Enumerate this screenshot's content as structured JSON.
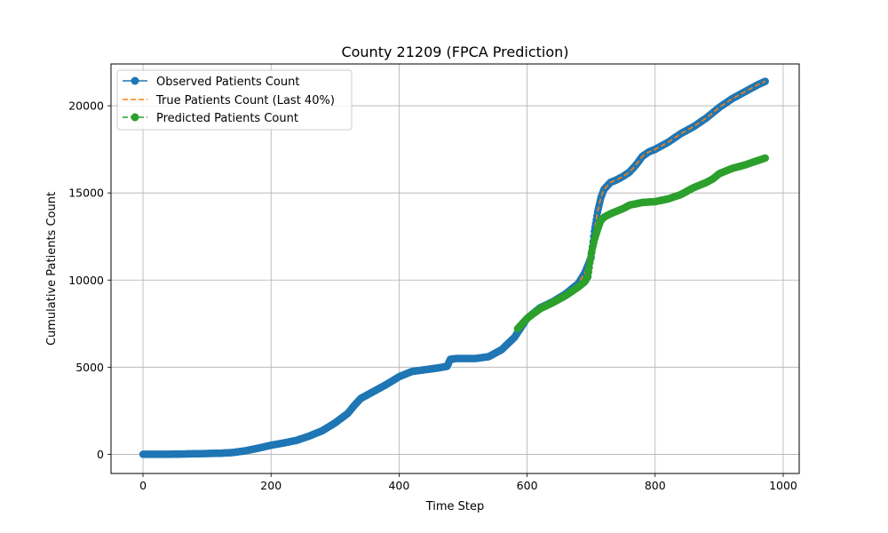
{
  "chart_data": {
    "type": "line",
    "title": "County 21209 (FPCA Prediction)",
    "xlabel": "Time Step",
    "ylabel": "Cumulative Patients Count",
    "xlim": [
      -50,
      1025
    ],
    "ylim": [
      -1100,
      22400
    ],
    "x_ticks": [
      0,
      200,
      400,
      600,
      800,
      1000
    ],
    "y_ticks": [
      0,
      5000,
      10000,
      15000,
      20000
    ],
    "grid": true,
    "legend_position": "top-left",
    "series": [
      {
        "name": "Observed Patients Count",
        "color": "#1f77b4",
        "style": "solid-marker",
        "x": [
          0,
          40,
          80,
          120,
          140,
          160,
          180,
          200,
          220,
          240,
          260,
          280,
          300,
          320,
          330,
          340,
          360,
          380,
          400,
          420,
          440,
          460,
          475,
          480,
          490,
          500,
          520,
          540,
          560,
          580,
          600,
          620,
          640,
          660,
          680,
          690,
          700,
          705,
          710,
          715,
          720,
          730,
          740,
          750,
          760,
          770,
          780,
          790,
          800,
          820,
          840,
          860,
          880,
          900,
          920,
          940,
          960,
          972
        ],
        "y": [
          0,
          0,
          30,
          60,
          100,
          200,
          350,
          520,
          650,
          800,
          1050,
          1350,
          1800,
          2350,
          2800,
          3200,
          3600,
          4000,
          4450,
          4750,
          4850,
          4950,
          5050,
          5450,
          5500,
          5500,
          5500,
          5600,
          6000,
          6700,
          7800,
          8400,
          8750,
          9200,
          9800,
          10400,
          11300,
          12800,
          13900,
          14700,
          15200,
          15600,
          15750,
          15950,
          16200,
          16600,
          17100,
          17350,
          17500,
          17900,
          18400,
          18800,
          19300,
          19900,
          20400,
          20800,
          21200,
          21400
        ]
      },
      {
        "name": "True Patients Count (Last 40%)",
        "color": "#ff7f0e",
        "style": "dashed",
        "x": [
          585,
          600,
          620,
          640,
          660,
          680,
          690,
          700,
          705,
          710,
          715,
          720,
          730,
          740,
          750,
          760,
          770,
          780,
          790,
          800,
          820,
          840,
          860,
          880,
          900,
          920,
          940,
          960,
          972
        ],
        "y": [
          7200,
          7800,
          8400,
          8750,
          9200,
          9800,
          10400,
          11300,
          12800,
          13900,
          14700,
          15200,
          15600,
          15750,
          15950,
          16200,
          16600,
          17100,
          17350,
          17500,
          17900,
          18400,
          18800,
          19300,
          19900,
          20400,
          20800,
          21200,
          21400
        ]
      },
      {
        "name": "Predicted Patients Count",
        "color": "#2ca02c",
        "style": "dashed-marker",
        "x": [
          585,
          600,
          620,
          640,
          660,
          680,
          690,
          695,
          700,
          705,
          710,
          715,
          720,
          730,
          740,
          750,
          760,
          780,
          800,
          820,
          840,
          860,
          880,
          890,
          900,
          920,
          940,
          960,
          972
        ],
        "y": [
          7200,
          7800,
          8350,
          8700,
          9100,
          9600,
          9900,
          10200,
          11500,
          12300,
          12900,
          13400,
          13600,
          13800,
          13950,
          14100,
          14300,
          14450,
          14500,
          14650,
          14900,
          15300,
          15600,
          15800,
          16100,
          16400,
          16600,
          16850,
          17000
        ]
      }
    ]
  }
}
